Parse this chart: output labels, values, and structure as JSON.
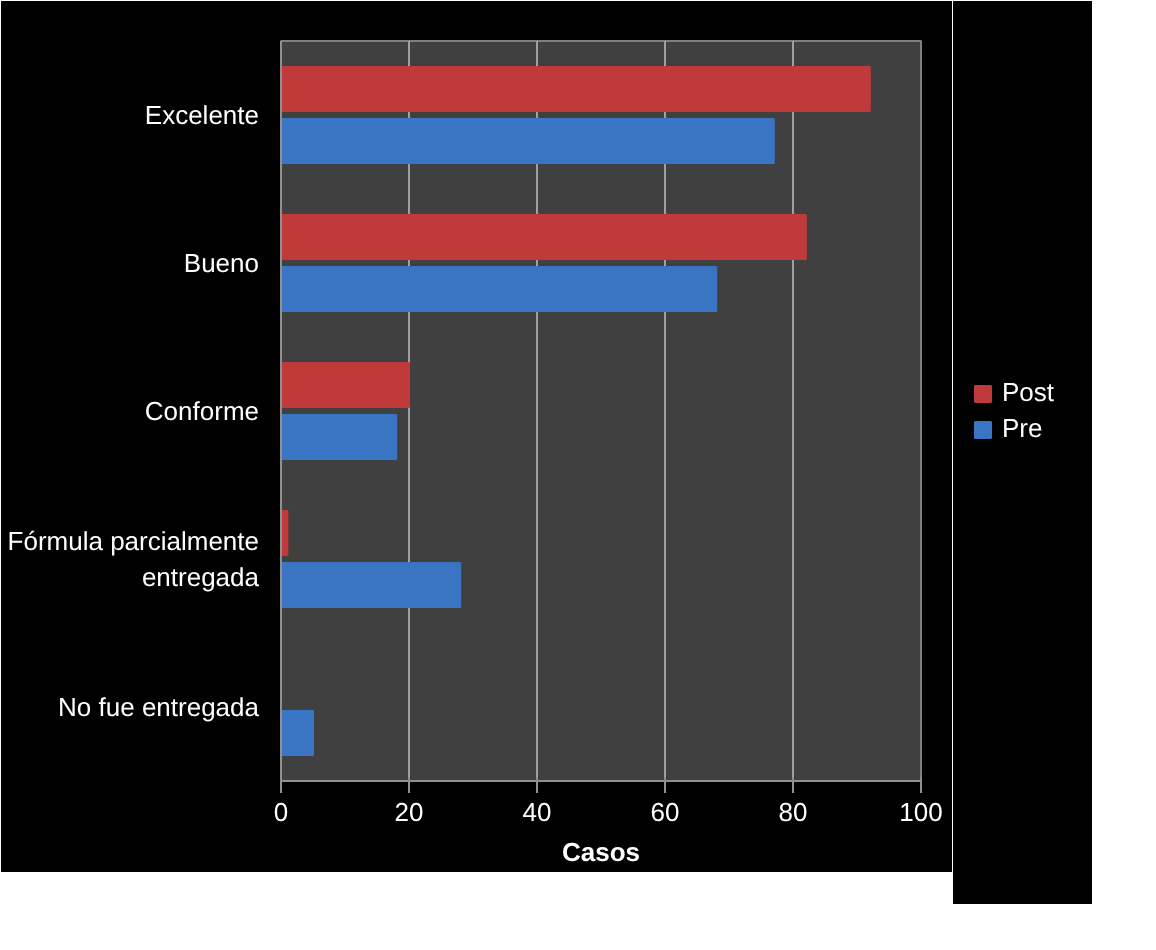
{
  "chart_data": {
    "type": "bar",
    "orientation": "horizontal",
    "xlabel": "Casos",
    "categories": [
      "Excelente",
      "Bueno",
      "Conforme",
      "Fórmula parcialmente entregada",
      "No fue entregada"
    ],
    "series": [
      {
        "name": "Post",
        "color": "#c0393b",
        "values": [
          92,
          82,
          20,
          1,
          0
        ]
      },
      {
        "name": "Pre",
        "color": "#3a75c4",
        "values": [
          77,
          68,
          18,
          28,
          5
        ]
      }
    ],
    "xlim": [
      0,
      100
    ],
    "xticks": [
      0,
      20,
      40,
      60,
      80,
      100
    ],
    "grid": "x",
    "legend": "right"
  }
}
